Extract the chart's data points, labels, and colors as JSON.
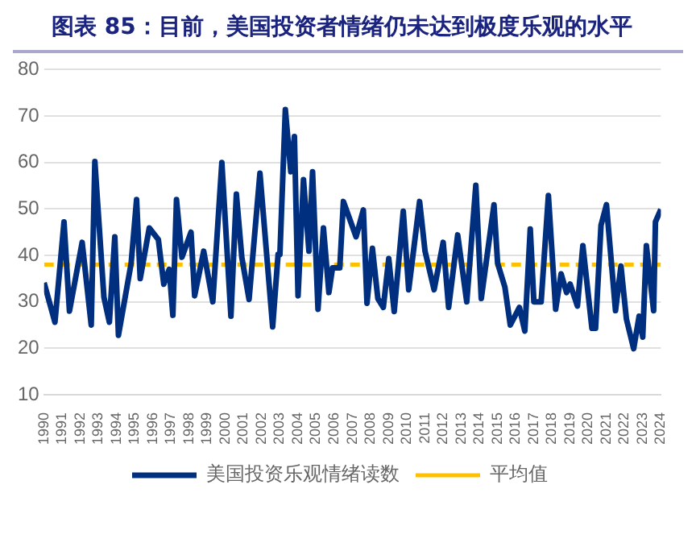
{
  "chart_data": {
    "type": "line",
    "title": "图表 85：目前，美国投资者情绪仍未达到极度乐观的水平",
    "series": [
      {
        "name": "美国投资乐观情绪读数",
        "color": "#002f7f",
        "x": [
          1990.0,
          1990.6,
          1991.1,
          1991.4,
          1992.1,
          1992.6,
          1992.8,
          1993.3,
          1993.6,
          1993.9,
          1994.1,
          1994.8,
          1995.1,
          1995.3,
          1995.8,
          1996.3,
          1996.6,
          1996.9,
          1997.1,
          1997.3,
          1997.6,
          1998.1,
          1998.3,
          1998.8,
          1999.3,
          1999.8,
          2000.3,
          2000.6,
          2000.9,
          2001.3,
          2001.9,
          2002.6,
          2002.9,
          2003.0,
          2003.3,
          2003.6,
          2003.8,
          2004.0,
          2004.3,
          2004.6,
          2004.8,
          2005.1,
          2005.4,
          2005.7,
          2005.9,
          2006.3,
          2006.5,
          2007.2,
          2007.6,
          2007.8,
          2008.1,
          2008.4,
          2008.7,
          2009.0,
          2009.3,
          2009.8,
          2010.1,
          2010.7,
          2011.0,
          2011.5,
          2012.0,
          2012.3,
          2012.8,
          2013.3,
          2013.8,
          2014.1,
          2014.8,
          2015.0,
          2015.4,
          2015.7,
          2016.2,
          2016.5,
          2016.8,
          2017.0,
          2017.4,
          2017.8,
          2018.2,
          2018.5,
          2018.8,
          2019.0,
          2019.4,
          2019.7,
          2020.2,
          2020.4,
          2020.7,
          2021.0,
          2021.5,
          2021.8,
          2022.1,
          2022.5,
          2022.8,
          2023.0,
          2023.2,
          2023.6,
          2023.7,
          2024.0
        ],
        "values": [
          34.1,
          25.6,
          47.2,
          28,
          42.8,
          25,
          60.2,
          31,
          25.6,
          44,
          22.8,
          38.3,
          52,
          35,
          45.9,
          43.4,
          33.8,
          37,
          27.1,
          52,
          39.6,
          45,
          31.3,
          40.9,
          30,
          60,
          26.9,
          53.2,
          39.6,
          30.5,
          57.7,
          24.6,
          40.2,
          40.2,
          71.4,
          58,
          65.6,
          31.3,
          56.3,
          40.9,
          58,
          28.4,
          45.9,
          32,
          37.3,
          37.3,
          51.6,
          44,
          49.8,
          29.7,
          41.5,
          30.7,
          28.8,
          39.3,
          27.9,
          49.5,
          32.6,
          51.6,
          40.9,
          32.6,
          42.8,
          28.8,
          44.4,
          30,
          55.1,
          30.7,
          50.9,
          38.3,
          33.2,
          25,
          28.8,
          23.7,
          45.7,
          30,
          30,
          52.9,
          28.4,
          36,
          32,
          33.8,
          29.1,
          42.1,
          24.3,
          24.3,
          46.5,
          50.9,
          28.1,
          37.7,
          26.3,
          19.9,
          26.9,
          22.4,
          42.1,
          28.1,
          47.2,
          49.9
        ]
      }
    ],
    "ref_lines": [
      {
        "axis": "y",
        "value": 38,
        "label": "平均值",
        "color": "#ffc000",
        "line_style": "dashed"
      }
    ],
    "xlim": [
      1990,
      2024
    ],
    "xticks": [
      1990,
      1991,
      1992,
      1993,
      1994,
      1995,
      1996,
      1997,
      1998,
      1999,
      2000,
      2001,
      2002,
      2003,
      2004,
      2005,
      2006,
      2007,
      2008,
      2009,
      2010,
      2011,
      2012,
      2013,
      2014,
      2015,
      2016,
      2017,
      2018,
      2019,
      2020,
      2021,
      2022,
      2023,
      2024
    ],
    "ylim": [
      10,
      80
    ],
    "yticks": [
      10,
      20,
      30,
      40,
      50,
      60,
      70,
      80
    ],
    "grid": "y",
    "legend": "bottom",
    "marker": "none",
    "line_style": "solid"
  }
}
